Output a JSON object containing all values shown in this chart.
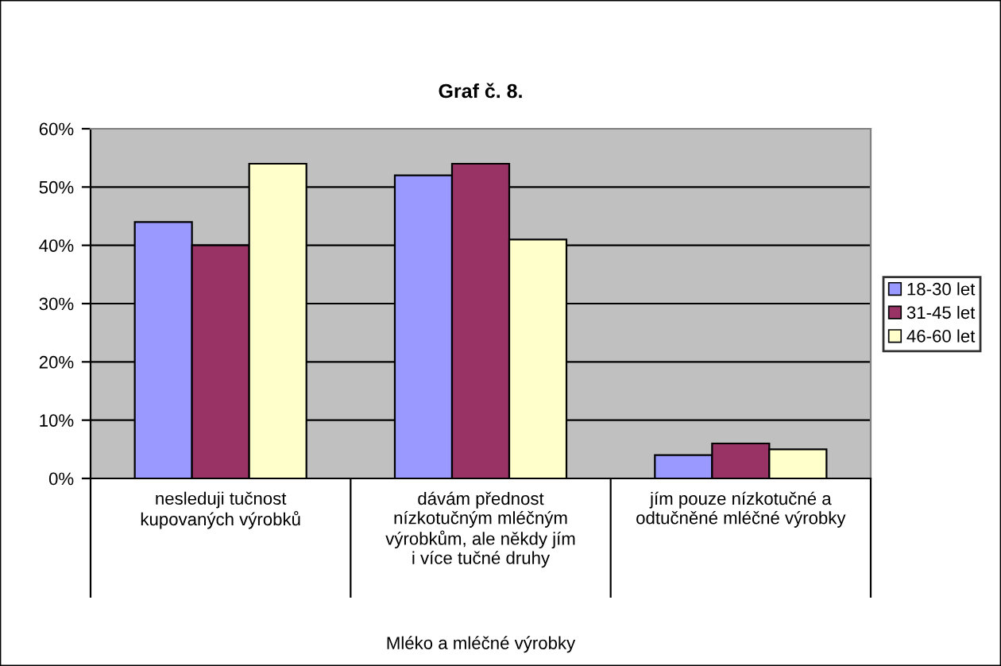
{
  "chart_data": {
    "type": "bar",
    "title": "Graf č. 8.",
    "xlabel": "Mléko a mléčné výrobky",
    "categories": [
      "nesleduji tučnost kupovaných výrobků",
      "dávám přednost nízkotučným mléčným výrobkům, ale někdy jím i více tučné druhy",
      "jím pouze nízkotučné a odtučněné mléčné výrobky"
    ],
    "series": [
      {
        "name": "18-30 let",
        "color": "#9999ff",
        "values": [
          44,
          52,
          4
        ]
      },
      {
        "name": "31-45 let",
        "color": "#993366",
        "values": [
          40,
          54,
          6
        ]
      },
      {
        "name": "46-60 let",
        "color": "#ffffcc",
        "values": [
          54,
          41,
          5
        ]
      }
    ],
    "ylim": [
      0,
      60
    ],
    "yticks": [
      {
        "value": 0,
        "label": "0%"
      },
      {
        "value": 10,
        "label": "10%"
      },
      {
        "value": 20,
        "label": "20%"
      },
      {
        "value": 30,
        "label": "30%"
      },
      {
        "value": 40,
        "label": "40%"
      },
      {
        "value": 50,
        "label": "50%"
      },
      {
        "value": 60,
        "label": "60%"
      }
    ],
    "grid": "y",
    "legend": "right"
  }
}
